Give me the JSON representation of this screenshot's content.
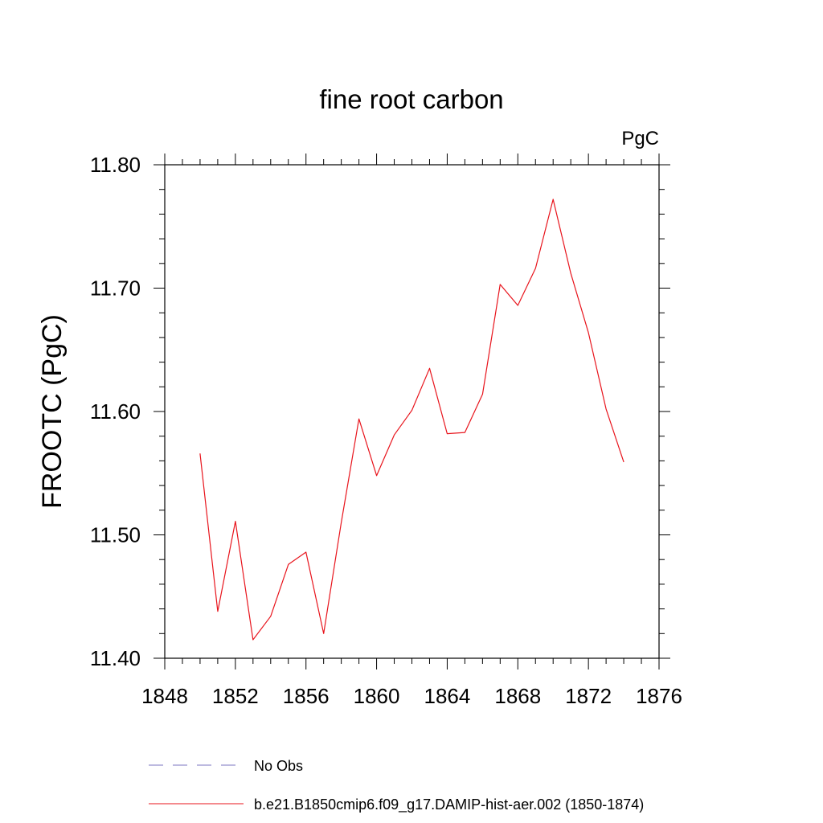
{
  "chart_data": {
    "type": "line",
    "title": "fine root carbon",
    "units_label": "PgC",
    "ylabel": "FROOTC  (PgC)",
    "xlabel": "",
    "xlim": [
      1848,
      1876
    ],
    "ylim": [
      11.4,
      11.8
    ],
    "x_ticks": [
      "1848",
      "1852",
      "1856",
      "1860",
      "1864",
      "1868",
      "1872",
      "1876"
    ],
    "y_ticks": [
      "11.40",
      "11.50",
      "11.60",
      "11.70",
      "11.80"
    ],
    "grid": false,
    "legend_position": "bottom",
    "series": [
      {
        "name": "b.e21.B1850cmip6.f09_g17.DAMIP-hist-aer.002 (1850-1874)",
        "color": "#e8141c",
        "style": "solid",
        "x": [
          1850,
          1851,
          1852,
          1853,
          1854,
          1855,
          1856,
          1857,
          1858,
          1859,
          1860,
          1861,
          1862,
          1863,
          1864,
          1865,
          1866,
          1867,
          1868,
          1869,
          1870,
          1871,
          1872,
          1873,
          1874
        ],
        "y": [
          11.566,
          11.438,
          11.511,
          11.415,
          11.434,
          11.476,
          11.486,
          11.42,
          11.51,
          11.594,
          11.548,
          11.581,
          11.601,
          11.635,
          11.582,
          11.583,
          11.614,
          11.703,
          11.686,
          11.716,
          11.772,
          11.712,
          11.664,
          11.602,
          11.559
        ]
      }
    ],
    "legend": [
      {
        "label": "No Obs",
        "color": "#7b74c0",
        "style": "dashed"
      },
      {
        "label": "b.e21.B1850cmip6.f09_g17.DAMIP-hist-aer.002 (1850-1874)",
        "color": "#e8141c",
        "style": "solid"
      }
    ]
  }
}
